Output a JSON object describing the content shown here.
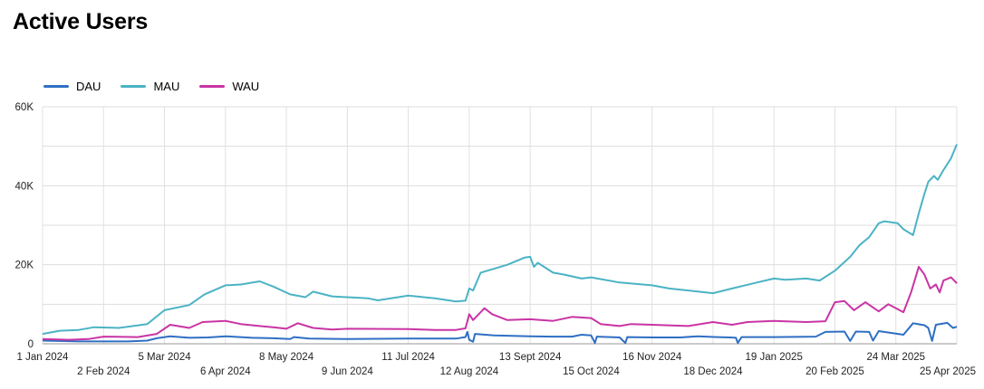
{
  "page": {
    "title": "Active Users"
  },
  "chart_data": {
    "type": "line",
    "title": "Active Users",
    "legend_position": "top-left",
    "grid": true,
    "ylim": [
      0,
      60000
    ],
    "y_ticks": [
      0,
      20000,
      40000,
      60000
    ],
    "y_tick_labels": [
      "0",
      "20K",
      "40K",
      "60K"
    ],
    "x_range": [
      "2024-01-01",
      "2025-04-25"
    ],
    "x_tick_labels": [
      {
        "date": "2024-01-01",
        "label": "1 Jan 2024"
      },
      {
        "date": "2024-02-02",
        "label": "2 Feb 2024"
      },
      {
        "date": "2024-03-05",
        "label": "5 Mar 2024"
      },
      {
        "date": "2024-04-06",
        "label": "6 Apr 2024"
      },
      {
        "date": "2024-05-08",
        "label": "8 May 2024"
      },
      {
        "date": "2024-06-09",
        "label": "9 Jun 2024"
      },
      {
        "date": "2024-07-11",
        "label": "11 Jul 2024"
      },
      {
        "date": "2024-08-12",
        "label": "12 Aug 2024"
      },
      {
        "date": "2024-09-13",
        "label": "13 Sept 2024"
      },
      {
        "date": "2024-10-15",
        "label": "15 Oct 2024"
      },
      {
        "date": "2024-11-16",
        "label": "16 Nov 2024"
      },
      {
        "date": "2024-12-18",
        "label": "18 Dec 2024"
      },
      {
        "date": "2025-01-19",
        "label": "19 Jan 2025"
      },
      {
        "date": "2025-02-20",
        "label": "20 Feb 2025"
      },
      {
        "date": "2025-03-24",
        "label": "24 Mar 2025"
      },
      {
        "date": "2025-04-25",
        "label": "25 Apr 2025"
      }
    ],
    "series": [
      {
        "name": "DAU",
        "color": "#2f6fc4",
        "points": [
          [
            "2024-01-01",
            800
          ],
          [
            "2024-01-20",
            600
          ],
          [
            "2024-02-15",
            600
          ],
          [
            "2024-02-25",
            800
          ],
          [
            "2024-03-01",
            1400
          ],
          [
            "2024-03-08",
            1900
          ],
          [
            "2024-03-18",
            1500
          ],
          [
            "2024-03-28",
            1600
          ],
          [
            "2024-04-06",
            1900
          ],
          [
            "2024-04-20",
            1500
          ],
          [
            "2024-05-01",
            1400
          ],
          [
            "2024-05-10",
            1200
          ],
          [
            "2024-05-12",
            1700
          ],
          [
            "2024-05-20",
            1300
          ],
          [
            "2024-06-09",
            1200
          ],
          [
            "2024-07-11",
            1300
          ],
          [
            "2024-08-05",
            1300
          ],
          [
            "2024-08-10",
            1700
          ],
          [
            "2024-08-11",
            3000
          ],
          [
            "2024-08-12",
            1000
          ],
          [
            "2024-08-14",
            500
          ],
          [
            "2024-08-15",
            2500
          ],
          [
            "2024-08-25",
            2100
          ],
          [
            "2024-09-13",
            1900
          ],
          [
            "2024-09-25",
            1800
          ],
          [
            "2024-10-05",
            1800
          ],
          [
            "2024-10-10",
            2300
          ],
          [
            "2024-10-15",
            2100
          ],
          [
            "2024-10-17",
            200
          ],
          [
            "2024-10-18",
            1800
          ],
          [
            "2024-10-30",
            1600
          ],
          [
            "2024-11-02",
            200
          ],
          [
            "2024-11-03",
            1700
          ],
          [
            "2024-11-16",
            1600
          ],
          [
            "2024-12-01",
            1600
          ],
          [
            "2024-12-10",
            1900
          ],
          [
            "2024-12-20",
            1700
          ],
          [
            "2024-12-27",
            1600
          ],
          [
            "2024-12-30",
            1500
          ],
          [
            "2024-12-31",
            200
          ],
          [
            "2025-01-02",
            1700
          ],
          [
            "2025-01-19",
            1700
          ],
          [
            "2025-02-10",
            1800
          ],
          [
            "2025-02-15",
            3000
          ],
          [
            "2025-02-25",
            3100
          ],
          [
            "2025-02-28",
            700
          ],
          [
            "2025-03-03",
            3100
          ],
          [
            "2025-03-10",
            3000
          ],
          [
            "2025-03-12",
            800
          ],
          [
            "2025-03-15",
            3200
          ],
          [
            "2025-03-28",
            2300
          ],
          [
            "2025-04-02",
            5200
          ],
          [
            "2025-04-08",
            4700
          ],
          [
            "2025-04-10",
            4000
          ],
          [
            "2025-04-12",
            700
          ],
          [
            "2025-04-14",
            4800
          ],
          [
            "2025-04-20",
            5300
          ],
          [
            "2025-04-23",
            4000
          ],
          [
            "2025-04-25",
            4300
          ]
        ]
      },
      {
        "name": "MAU",
        "color": "#4bb3c4",
        "points": [
          [
            "2024-01-01",
            2500
          ],
          [
            "2024-01-10",
            3300
          ],
          [
            "2024-01-20",
            3500
          ],
          [
            "2024-01-28",
            4200
          ],
          [
            "2024-02-10",
            4000
          ],
          [
            "2024-02-25",
            5000
          ],
          [
            "2024-03-05",
            8500
          ],
          [
            "2024-03-18",
            9800
          ],
          [
            "2024-03-26",
            12500
          ],
          [
            "2024-04-06",
            14800
          ],
          [
            "2024-04-14",
            15000
          ],
          [
            "2024-04-24",
            15800
          ],
          [
            "2024-05-01",
            14500
          ],
          [
            "2024-05-10",
            12500
          ],
          [
            "2024-05-18",
            11800
          ],
          [
            "2024-05-22",
            13200
          ],
          [
            "2024-06-01",
            12000
          ],
          [
            "2024-06-20",
            11500
          ],
          [
            "2024-06-25",
            11000
          ],
          [
            "2024-07-11",
            12200
          ],
          [
            "2024-07-25",
            11500
          ],
          [
            "2024-08-05",
            10700
          ],
          [
            "2024-08-10",
            10900
          ],
          [
            "2024-08-12",
            14000
          ],
          [
            "2024-08-14",
            13500
          ],
          [
            "2024-08-18",
            18000
          ],
          [
            "2024-09-01",
            20000
          ],
          [
            "2024-09-10",
            21800
          ],
          [
            "2024-09-13",
            22000
          ],
          [
            "2024-09-15",
            19500
          ],
          [
            "2024-09-17",
            20500
          ],
          [
            "2024-09-25",
            18000
          ],
          [
            "2024-10-01",
            17500
          ],
          [
            "2024-10-10",
            16500
          ],
          [
            "2024-10-15",
            16800
          ],
          [
            "2024-10-30",
            15500
          ],
          [
            "2024-11-16",
            14800
          ],
          [
            "2024-11-25",
            14000
          ],
          [
            "2024-12-05",
            13500
          ],
          [
            "2024-12-18",
            12800
          ],
          [
            "2024-12-28",
            14000
          ],
          [
            "2025-01-10",
            15500
          ],
          [
            "2025-01-19",
            16500
          ],
          [
            "2025-01-25",
            16200
          ],
          [
            "2025-02-05",
            16500
          ],
          [
            "2025-02-12",
            16000
          ],
          [
            "2025-02-20",
            18500
          ],
          [
            "2025-02-28",
            22000
          ],
          [
            "2025-03-05",
            25000
          ],
          [
            "2025-03-10",
            27000
          ],
          [
            "2025-03-15",
            30500
          ],
          [
            "2025-03-18",
            31000
          ],
          [
            "2025-03-25",
            30500
          ],
          [
            "2025-03-28",
            29000
          ],
          [
            "2025-04-02",
            27500
          ],
          [
            "2025-04-05",
            33000
          ],
          [
            "2025-04-08",
            38000
          ],
          [
            "2025-04-10",
            41000
          ],
          [
            "2025-04-13",
            42500
          ],
          [
            "2025-04-15",
            41500
          ],
          [
            "2025-04-18",
            44000
          ],
          [
            "2025-04-22",
            47000
          ],
          [
            "2025-04-25",
            50500
          ]
        ]
      },
      {
        "name": "WAU",
        "color": "#c934a4",
        "points": [
          [
            "2024-01-01",
            1200
          ],
          [
            "2024-01-15",
            1000
          ],
          [
            "2024-01-25",
            1200
          ],
          [
            "2024-02-02",
            1800
          ],
          [
            "2024-02-20",
            1700
          ],
          [
            "2024-03-01",
            2500
          ],
          [
            "2024-03-08",
            4800
          ],
          [
            "2024-03-18",
            4000
          ],
          [
            "2024-03-25",
            5500
          ],
          [
            "2024-04-06",
            5800
          ],
          [
            "2024-04-14",
            5000
          ],
          [
            "2024-04-24",
            4500
          ],
          [
            "2024-05-01",
            4200
          ],
          [
            "2024-05-08",
            3800
          ],
          [
            "2024-05-14",
            5200
          ],
          [
            "2024-05-22",
            4000
          ],
          [
            "2024-06-01",
            3600
          ],
          [
            "2024-06-09",
            3800
          ],
          [
            "2024-07-11",
            3700
          ],
          [
            "2024-07-25",
            3500
          ],
          [
            "2024-08-05",
            3500
          ],
          [
            "2024-08-10",
            3900
          ],
          [
            "2024-08-12",
            7500
          ],
          [
            "2024-08-14",
            6000
          ],
          [
            "2024-08-20",
            9000
          ],
          [
            "2024-08-24",
            7500
          ],
          [
            "2024-09-01",
            6000
          ],
          [
            "2024-09-13",
            6200
          ],
          [
            "2024-09-25",
            5800
          ],
          [
            "2024-10-05",
            6800
          ],
          [
            "2024-10-15",
            6500
          ],
          [
            "2024-10-20",
            5000
          ],
          [
            "2024-10-30",
            4500
          ],
          [
            "2024-11-05",
            5000
          ],
          [
            "2024-11-16",
            4800
          ],
          [
            "2024-12-05",
            4500
          ],
          [
            "2024-12-18",
            5500
          ],
          [
            "2024-12-28",
            4800
          ],
          [
            "2025-01-05",
            5500
          ],
          [
            "2025-01-19",
            5800
          ],
          [
            "2025-02-05",
            5500
          ],
          [
            "2025-02-15",
            5700
          ],
          [
            "2025-02-20",
            10500
          ],
          [
            "2025-02-25",
            10800
          ],
          [
            "2025-03-02",
            8500
          ],
          [
            "2025-03-08",
            10500
          ],
          [
            "2025-03-15",
            8200
          ],
          [
            "2025-03-20",
            10000
          ],
          [
            "2025-03-28",
            8000
          ],
          [
            "2025-04-01",
            13000
          ],
          [
            "2025-04-05",
            19500
          ],
          [
            "2025-04-08",
            17500
          ],
          [
            "2025-04-11",
            14000
          ],
          [
            "2025-04-14",
            15000
          ],
          [
            "2025-04-16",
            13000
          ],
          [
            "2025-04-18",
            16000
          ],
          [
            "2025-04-22",
            16800
          ],
          [
            "2025-04-25",
            15300
          ]
        ]
      }
    ]
  }
}
